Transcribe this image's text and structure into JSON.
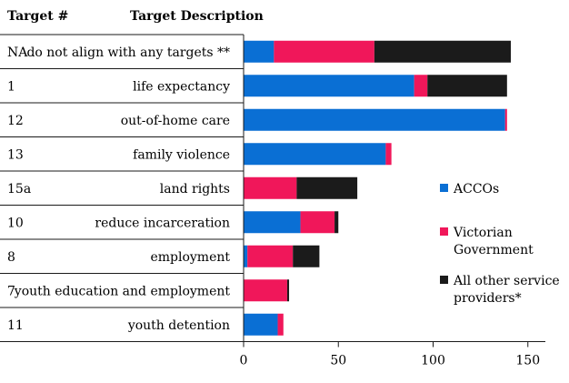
{
  "chart_data": {
    "type": "bar",
    "stacked": true,
    "orientation": "horizontal",
    "headers": {
      "target": "Target #",
      "description": "Target Description"
    },
    "rows": [
      {
        "target": "NA",
        "description": "do not align with any targets **"
      },
      {
        "target": "1",
        "description": "life expectancy"
      },
      {
        "target": "12",
        "description": "out-of-home care"
      },
      {
        "target": "13",
        "description": "family violence"
      },
      {
        "target": "15a",
        "description": "land rights"
      },
      {
        "target": "10",
        "description": "reduce incarceration"
      },
      {
        "target": "8",
        "description": "employment"
      },
      {
        "target": "7",
        "description": "youth education and employment"
      },
      {
        "target": "11",
        "description": "youth detention"
      }
    ],
    "series": [
      {
        "name": "ACCOs",
        "color": "#0a6fd4",
        "values": [
          16,
          90,
          138,
          75,
          0,
          30,
          2,
          0,
          18
        ]
      },
      {
        "name": "Victorian Government",
        "legend_lines": [
          "Victorian",
          "Government"
        ],
        "color": "#f0175a",
        "values": [
          53,
          7,
          1,
          3,
          28,
          18,
          24,
          23,
          3
        ]
      },
      {
        "name": "All other service providers*",
        "legend_lines": [
          "All other service",
          "providers*"
        ],
        "color": "#1b1b1b",
        "values": [
          72,
          42,
          0,
          0,
          32,
          2,
          14,
          1,
          0
        ]
      }
    ],
    "xlim": [
      0,
      150
    ],
    "xticks": [
      "0",
      "50",
      "100",
      "150"
    ],
    "legend_position": "right"
  }
}
